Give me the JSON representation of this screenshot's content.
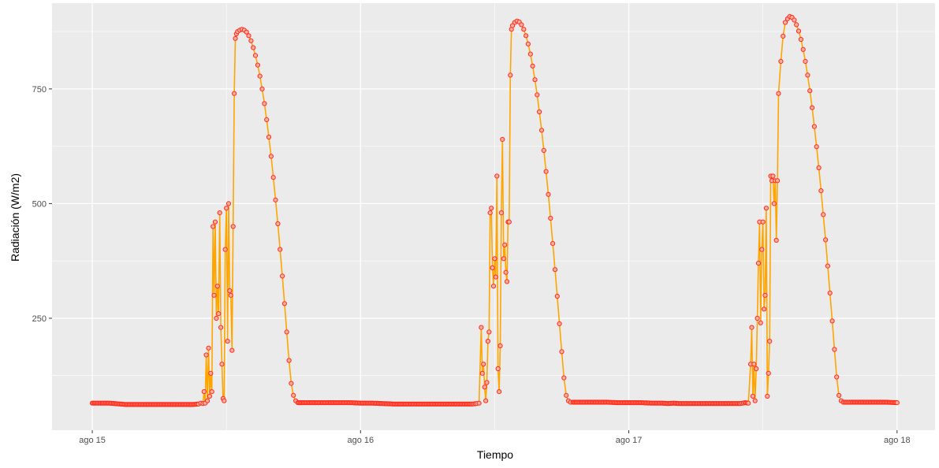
{
  "chart_data": {
    "type": "line",
    "title": "",
    "xlabel": "Tiempo",
    "ylabel": "Radiación (W/m2)",
    "x_tick_labels": [
      "ago 15",
      "ago 16",
      "ago 17",
      "ago 18"
    ],
    "x_tick_values": [
      0,
      24,
      48,
      72
    ],
    "y_tick_labels": [
      "250",
      "500",
      "750"
    ],
    "y_tick_values": [
      250,
      500,
      750
    ],
    "xlim": [
      -3.6,
      75.4
    ],
    "ylim": [
      6,
      937
    ],
    "grid": true,
    "legend": "none",
    "colors": {
      "line": "#FFA500",
      "point_stroke": "#FF2A1A",
      "point_fill": "#FFB0A0",
      "panel": "#EBEBEB",
      "grid": "#FFFFFF"
    },
    "series": [
      {
        "x_unit": "hours since ago 15 00:00",
        "points": [
          [
            0,
            65
          ],
          [
            0.5,
            65
          ],
          [
            1,
            65
          ],
          [
            1.5,
            65
          ],
          [
            2,
            64
          ],
          [
            2.5,
            63
          ],
          [
            3,
            62
          ],
          [
            3.5,
            62
          ],
          [
            4,
            62
          ],
          [
            4.5,
            62
          ],
          [
            5,
            62
          ],
          [
            5.5,
            62
          ],
          [
            6,
            62
          ],
          [
            6.5,
            62
          ],
          [
            7,
            62
          ],
          [
            7.5,
            62
          ],
          [
            8,
            62
          ],
          [
            8.5,
            62
          ],
          [
            9,
            62
          ],
          [
            9.5,
            63
          ],
          [
            9.7,
            65
          ],
          [
            9.9,
            64
          ],
          [
            10.0,
            90
          ],
          [
            10.1,
            65
          ],
          [
            10.2,
            170
          ],
          [
            10.3,
            70
          ],
          [
            10.4,
            185
          ],
          [
            10.5,
            80
          ],
          [
            10.6,
            130
          ],
          [
            10.7,
            90
          ],
          [
            10.8,
            450
          ],
          [
            10.9,
            300
          ],
          [
            11.0,
            460
          ],
          [
            11.1,
            250
          ],
          [
            11.2,
            320
          ],
          [
            11.3,
            260
          ],
          [
            11.4,
            480
          ],
          [
            11.5,
            230
          ],
          [
            11.6,
            150
          ],
          [
            11.7,
            75
          ],
          [
            11.8,
            70
          ],
          [
            11.9,
            400
          ],
          [
            12.0,
            490
          ],
          [
            12.1,
            200
          ],
          [
            12.2,
            500
          ],
          [
            12.3,
            310
          ],
          [
            12.4,
            300
          ],
          [
            12.5,
            180
          ],
          [
            12.6,
            450
          ],
          [
            12.7,
            740
          ],
          [
            12.8,
            860
          ],
          [
            12.9,
            870
          ],
          [
            13.0,
            875
          ],
          [
            13.2,
            878
          ],
          [
            13.4,
            880
          ],
          [
            13.6,
            878
          ],
          [
            13.8,
            874
          ],
          [
            14.0,
            866
          ],
          [
            14.2,
            855
          ],
          [
            14.4,
            840
          ],
          [
            14.6,
            823
          ],
          [
            14.8,
            802
          ],
          [
            15.0,
            778
          ],
          [
            15.2,
            750
          ],
          [
            15.4,
            718
          ],
          [
            15.6,
            683
          ],
          [
            15.8,
            645
          ],
          [
            16.0,
            603
          ],
          [
            16.2,
            557
          ],
          [
            16.4,
            508
          ],
          [
            16.6,
            456
          ],
          [
            16.8,
            400
          ],
          [
            17.0,
            342
          ],
          [
            17.2,
            282
          ],
          [
            17.4,
            220
          ],
          [
            17.6,
            158
          ],
          [
            17.8,
            108
          ],
          [
            18.0,
            82
          ],
          [
            18.2,
            70
          ],
          [
            18.4,
            66
          ],
          [
            19,
            66
          ],
          [
            20,
            66
          ],
          [
            21,
            66
          ],
          [
            22,
            66
          ],
          [
            23,
            66
          ],
          [
            24,
            65
          ],
          [
            25,
            65
          ],
          [
            26,
            64
          ],
          [
            27,
            63
          ],
          [
            28,
            63
          ],
          [
            29,
            63
          ],
          [
            30,
            63
          ],
          [
            31,
            63
          ],
          [
            32,
            63
          ],
          [
            33,
            63
          ],
          [
            34,
            63
          ],
          [
            34.4,
            64
          ],
          [
            34.6,
            65
          ],
          [
            34.8,
            230
          ],
          [
            34.9,
            130
          ],
          [
            35.0,
            150
          ],
          [
            35.1,
            100
          ],
          [
            35.2,
            70
          ],
          [
            35.3,
            110
          ],
          [
            35.4,
            200
          ],
          [
            35.5,
            220
          ],
          [
            35.6,
            480
          ],
          [
            35.7,
            490
          ],
          [
            35.8,
            360
          ],
          [
            35.9,
            320
          ],
          [
            36.0,
            380
          ],
          [
            36.1,
            340
          ],
          [
            36.2,
            560
          ],
          [
            36.3,
            140
          ],
          [
            36.4,
            90
          ],
          [
            36.5,
            190
          ],
          [
            36.6,
            480
          ],
          [
            36.7,
            640
          ],
          [
            36.8,
            380
          ],
          [
            36.9,
            410
          ],
          [
            37.0,
            350
          ],
          [
            37.1,
            330
          ],
          [
            37.2,
            460
          ],
          [
            37.3,
            460
          ],
          [
            37.4,
            780
          ],
          [
            37.5,
            880
          ],
          [
            37.6,
            888
          ],
          [
            37.8,
            895
          ],
          [
            38.0,
            898
          ],
          [
            38.2,
            896
          ],
          [
            38.4,
            890
          ],
          [
            38.6,
            880
          ],
          [
            38.8,
            866
          ],
          [
            39.0,
            848
          ],
          [
            39.2,
            826
          ],
          [
            39.4,
            800
          ],
          [
            39.6,
            770
          ],
          [
            39.8,
            737
          ],
          [
            40.0,
            700
          ],
          [
            40.2,
            660
          ],
          [
            40.4,
            616
          ],
          [
            40.6,
            570
          ],
          [
            40.8,
            520
          ],
          [
            41.0,
            468
          ],
          [
            41.2,
            413
          ],
          [
            41.4,
            356
          ],
          [
            41.6,
            298
          ],
          [
            41.8,
            238
          ],
          [
            42.0,
            177
          ],
          [
            42.2,
            120
          ],
          [
            42.4,
            82
          ],
          [
            42.6,
            70
          ],
          [
            42.8,
            67
          ],
          [
            43,
            67
          ],
          [
            44,
            67
          ],
          [
            45,
            67
          ],
          [
            46,
            67
          ],
          [
            47,
            66
          ],
          [
            48,
            66
          ],
          [
            49,
            66
          ],
          [
            50,
            65
          ],
          [
            51,
            65
          ],
          [
            51.5,
            64
          ],
          [
            52,
            65
          ],
          [
            52.5,
            64
          ],
          [
            53,
            64
          ],
          [
            54,
            64
          ],
          [
            55,
            64
          ],
          [
            56,
            64
          ],
          [
            57,
            64
          ],
          [
            58,
            64
          ],
          [
            58.4,
            66
          ],
          [
            58.7,
            65
          ],
          [
            58.9,
            150
          ],
          [
            59.0,
            230
          ],
          [
            59.1,
            80
          ],
          [
            59.2,
            150
          ],
          [
            59.3,
            70
          ],
          [
            59.4,
            140
          ],
          [
            59.5,
            250
          ],
          [
            59.6,
            370
          ],
          [
            59.7,
            460
          ],
          [
            59.8,
            240
          ],
          [
            59.9,
            400
          ],
          [
            60.0,
            460
          ],
          [
            60.1,
            270
          ],
          [
            60.2,
            300
          ],
          [
            60.3,
            490
          ],
          [
            60.4,
            80
          ],
          [
            60.5,
            130
          ],
          [
            60.6,
            200
          ],
          [
            60.7,
            560
          ],
          [
            60.8,
            550
          ],
          [
            60.9,
            560
          ],
          [
            61.0,
            500
          ],
          [
            61.1,
            550
          ],
          [
            61.2,
            420
          ],
          [
            61.3,
            550
          ],
          [
            61.4,
            740
          ],
          [
            61.6,
            810
          ],
          [
            61.8,
            865
          ],
          [
            62.0,
            895
          ],
          [
            62.2,
            903
          ],
          [
            62.4,
            908
          ],
          [
            62.6,
            906
          ],
          [
            62.8,
            900
          ],
          [
            63.0,
            890
          ],
          [
            63.2,
            876
          ],
          [
            63.4,
            858
          ],
          [
            63.6,
            836
          ],
          [
            63.8,
            810
          ],
          [
            64.0,
            780
          ],
          [
            64.2,
            746
          ],
          [
            64.4,
            709
          ],
          [
            64.6,
            668
          ],
          [
            64.8,
            624
          ],
          [
            65.0,
            578
          ],
          [
            65.2,
            528
          ],
          [
            65.4,
            476
          ],
          [
            65.6,
            421
          ],
          [
            65.8,
            364
          ],
          [
            66.0,
            305
          ],
          [
            66.2,
            244
          ],
          [
            66.4,
            182
          ],
          [
            66.6,
            122
          ],
          [
            66.8,
            82
          ],
          [
            67.0,
            70
          ],
          [
            67.2,
            67
          ],
          [
            68,
            67
          ],
          [
            69,
            67
          ],
          [
            70,
            67
          ],
          [
            71,
            67
          ],
          [
            72,
            66
          ]
        ]
      }
    ]
  }
}
